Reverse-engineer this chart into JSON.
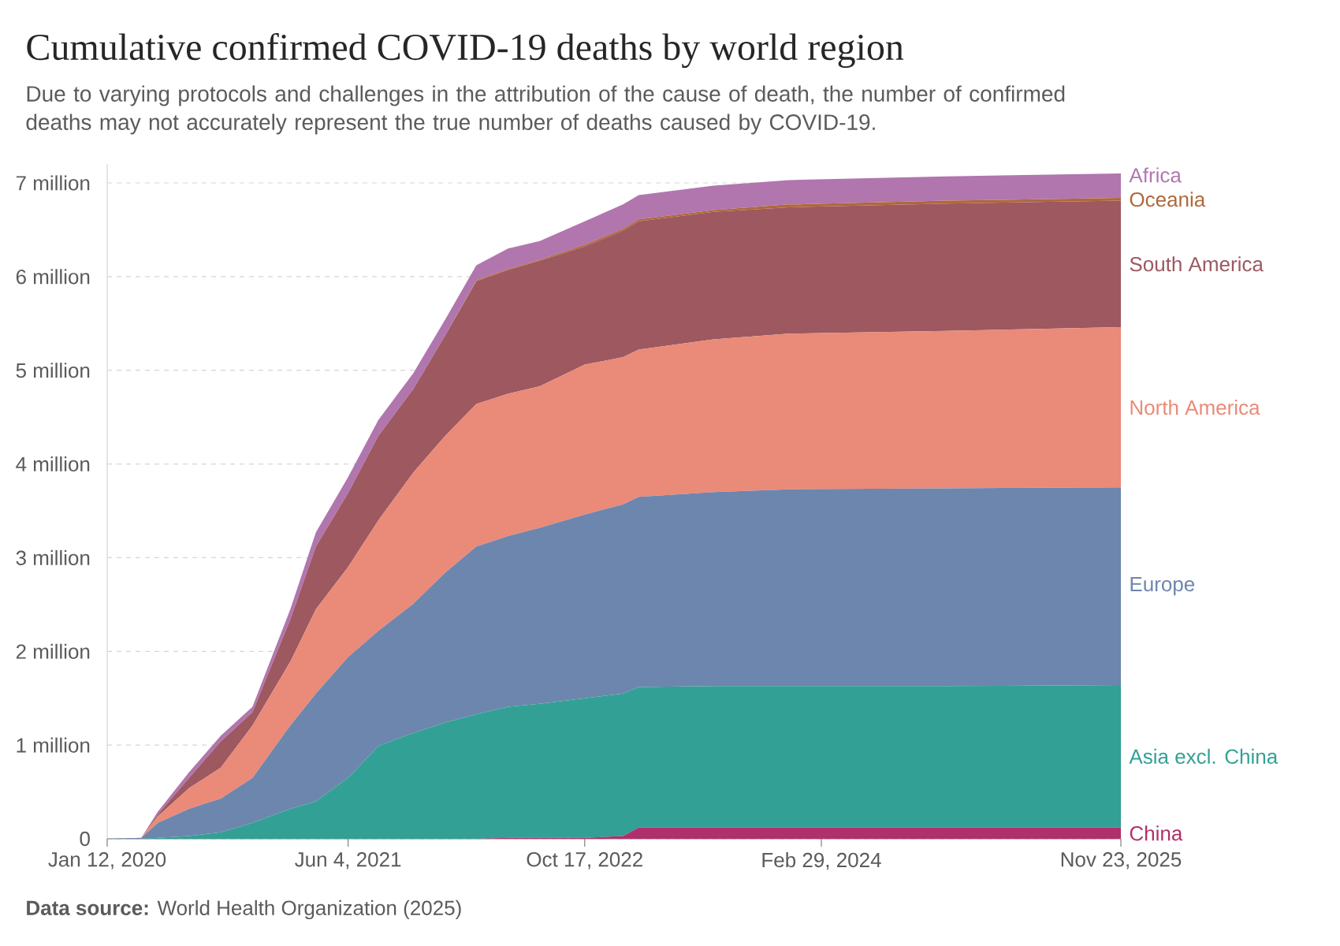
{
  "chart_data": {
    "type": "area",
    "stacked": true,
    "title": "Cumulative confirmed COVID-19 deaths by world region",
    "subtitle": "Due to varying protocols and challenges in the attribution of the cause of death, the number of confirmed deaths may not accurately represent the true number of deaths caused by COVID-19.",
    "annotations": [
      "**Data source:** World Health Organization (2025)"
    ],
    "x": [
      "2020-01-12",
      "2020-03-24",
      "2020-04-28",
      "2020-07-03",
      "2020-09-08",
      "2020-11-14",
      "2021-02-02",
      "2021-03-28",
      "2021-06-04",
      "2021-08-07",
      "2021-10-20",
      "2021-12-26",
      "2022-03-02",
      "2022-05-08",
      "2022-07-14",
      "2022-10-17",
      "2023-01-06",
      "2023-02-08",
      "2023-07-16",
      "2023-12-22",
      "2024-11-19",
      "2025-11-23"
    ],
    "series": [
      {
        "name": "China",
        "color": "#b0306c",
        "values": [
          0,
          0,
          0,
          0,
          0,
          0,
          0,
          0,
          0,
          0,
          0,
          0,
          0,
          10000,
          10000,
          10000,
          30000,
          120000,
          120000,
          120000,
          120000,
          120000
        ]
      },
      {
        "name": "Asia excl. China",
        "color": "#33a096",
        "values": [
          0,
          0,
          10000,
          30000,
          70000,
          170000,
          320000,
          400000,
          650000,
          990000,
          1130000,
          1240000,
          1330000,
          1400000,
          1430000,
          1490000,
          1520000,
          1500000,
          1510000,
          1510000,
          1510000,
          1520000
        ]
      },
      {
        "name": "Europe",
        "color": "#6d86ae",
        "values": [
          0,
          10000,
          160000,
          290000,
          360000,
          480000,
          890000,
          1150000,
          1290000,
          1230000,
          1380000,
          1600000,
          1790000,
          1820000,
          1880000,
          1960000,
          2020000,
          2030000,
          2070000,
          2100000,
          2110000,
          2110000
        ]
      },
      {
        "name": "North America",
        "color": "#ea8a78",
        "values": [
          0,
          0,
          70000,
          220000,
          330000,
          560000,
          680000,
          900000,
          960000,
          1180000,
          1400000,
          1460000,
          1520000,
          1520000,
          1510000,
          1600000,
          1570000,
          1570000,
          1630000,
          1660000,
          1680000,
          1710000
        ]
      },
      {
        "name": "South America",
        "color": "#9d5860",
        "values": [
          0,
          0,
          20000,
          110000,
          280000,
          140000,
          450000,
          670000,
          790000,
          900000,
          890000,
          1070000,
          1310000,
          1320000,
          1340000,
          1260000,
          1350000,
          1370000,
          1360000,
          1350000,
          1360000,
          1350000
        ]
      },
      {
        "name": "Oceania",
        "color": "#b0683a",
        "values": [
          0,
          0,
          0,
          0,
          0,
          0,
          0,
          0,
          0,
          0,
          0,
          0,
          10000,
          10000,
          10000,
          20000,
          20000,
          20000,
          20000,
          30000,
          30000,
          30000
        ]
      },
      {
        "name": "Africa",
        "color": "#b176ae",
        "values": [
          0,
          0,
          30000,
          60000,
          60000,
          60000,
          110000,
          150000,
          170000,
          170000,
          170000,
          170000,
          160000,
          220000,
          200000,
          250000,
          260000,
          260000,
          260000,
          260000,
          260000,
          260000
        ]
      }
    ],
    "xlim": [
      "2020-01-12",
      "2025-11-23"
    ],
    "xticks": [
      {
        "value": "2020-01-12",
        "label": "Jan 12, 2020"
      },
      {
        "value": "2021-06-04",
        "label": "Jun 4, 2021"
      },
      {
        "value": "2022-10-17",
        "label": "Oct 17, 2022"
      },
      {
        "value": "2024-02-29",
        "label": "Feb 29, 2024"
      },
      {
        "value": "2025-11-23",
        "label": "Nov 23, 2025"
      }
    ],
    "ylim": [
      0,
      7200000
    ],
    "yticks": [
      0,
      {
        "value": 1000000,
        "label": "1 million"
      },
      {
        "value": 2000000,
        "label": "2 million"
      },
      {
        "value": 3000000,
        "label": "3 million"
      },
      {
        "value": 4000000,
        "label": "4 million"
      },
      {
        "value": 5000000,
        "label": "5 million"
      },
      {
        "value": 6000000,
        "label": "6 million"
      },
      {
        "value": 7000000,
        "label": "7 million"
      }
    ],
    "grid": "y"
  }
}
